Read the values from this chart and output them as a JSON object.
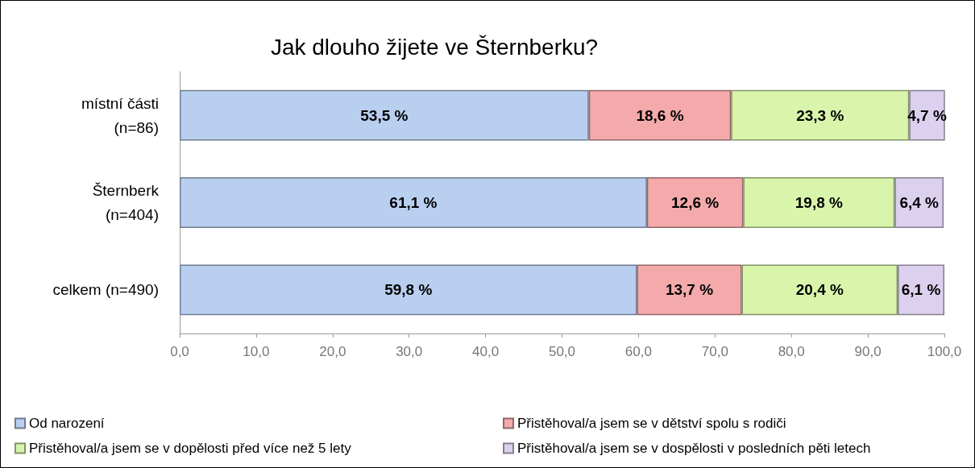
{
  "chart_data": {
    "type": "bar",
    "orientation": "horizontal",
    "stacked": true,
    "title": "Jak dlouho žijete ve Šternberku?",
    "categories": [
      "místní části\n(n=86)",
      "Šternberk\n(n=404)",
      "celkem (n=490)"
    ],
    "series": [
      {
        "name": "Od narození",
        "color": "#b9cff0",
        "values": [
          53.5,
          61.1,
          59.8
        ],
        "value_labels": [
          "53,5 %",
          "61,1 %",
          "59,8 %"
        ]
      },
      {
        "name": "Přistěhoval/a jsem se v dětství spolu s rodiči",
        "color": "#f4aaaa",
        "values": [
          18.6,
          12.6,
          13.7
        ],
        "value_labels": [
          "18,6 %",
          "12,6 %",
          "13,7 %"
        ]
      },
      {
        "name": "Přistěhoval/a jsem se v dopělosti před více než 5 lety",
        "color": "#d9f5ac",
        "values": [
          23.3,
          19.8,
          20.4
        ],
        "value_labels": [
          "23,3 %",
          "19,8 %",
          "20,4 %"
        ]
      },
      {
        "name": "Přistěhoval/a jsem se v dospělosti v posledních pěti letech",
        "color": "#dcd0ef",
        "values": [
          4.7,
          6.4,
          6.1
        ],
        "value_labels": [
          "4,7 %",
          "6,4 %",
          "6,1 %"
        ]
      }
    ],
    "xlim": [
      0,
      100
    ],
    "xticks": [
      {
        "value": 0,
        "label": "0,0"
      },
      {
        "value": 10,
        "label": "10,0"
      },
      {
        "value": 20,
        "label": "20,0"
      },
      {
        "value": 30,
        "label": "30,0"
      },
      {
        "value": 40,
        "label": "40,0"
      },
      {
        "value": 50,
        "label": "50,0"
      },
      {
        "value": 60,
        "label": "60,0"
      },
      {
        "value": 70,
        "label": "70,0"
      },
      {
        "value": 80,
        "label": "80,0"
      },
      {
        "value": 90,
        "label": "90,0"
      },
      {
        "value": 100,
        "label": "100,0"
      }
    ],
    "grid": false,
    "legend": "bottom"
  }
}
